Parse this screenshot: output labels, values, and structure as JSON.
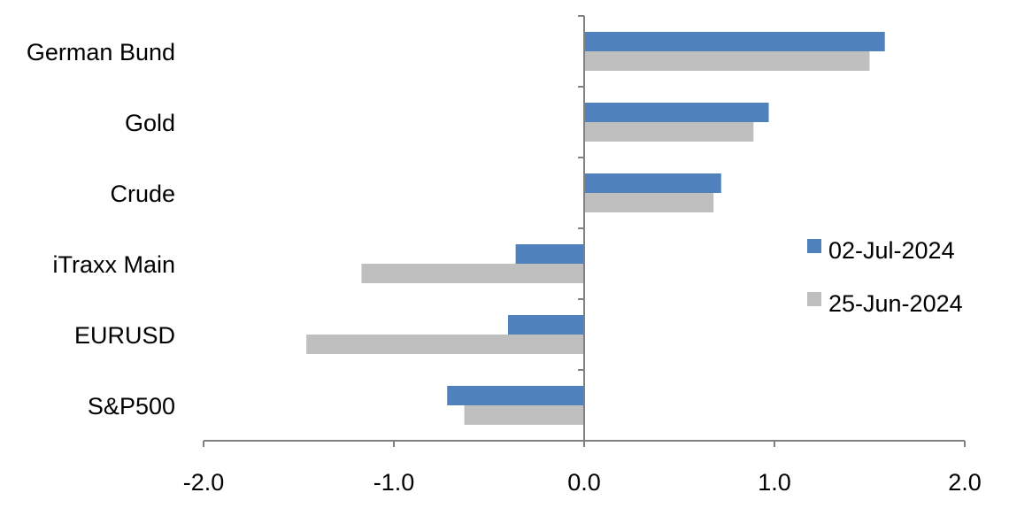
{
  "chart_data": {
    "type": "bar",
    "orientation": "horizontal",
    "categories": [
      "German Bund",
      "Gold",
      "Crude",
      "iTraxx Main",
      "EURUSD",
      "S&P500"
    ],
    "series": [
      {
        "name": "02-Jul-2024",
        "color": "#4F81BD",
        "values": [
          1.58,
          0.97,
          0.72,
          -0.36,
          -0.4,
          -0.72
        ]
      },
      {
        "name": "25-Jun-2024",
        "color": "#BFBFBF",
        "values": [
          1.5,
          0.89,
          0.68,
          -1.17,
          -1.46,
          -0.63
        ]
      }
    ],
    "xlim": [
      -2.0,
      2.0
    ],
    "xticks": [
      "-2.0",
      "-1.0",
      "0.0",
      "1.0",
      "2.0"
    ],
    "grid": false,
    "legend_position": "right"
  }
}
